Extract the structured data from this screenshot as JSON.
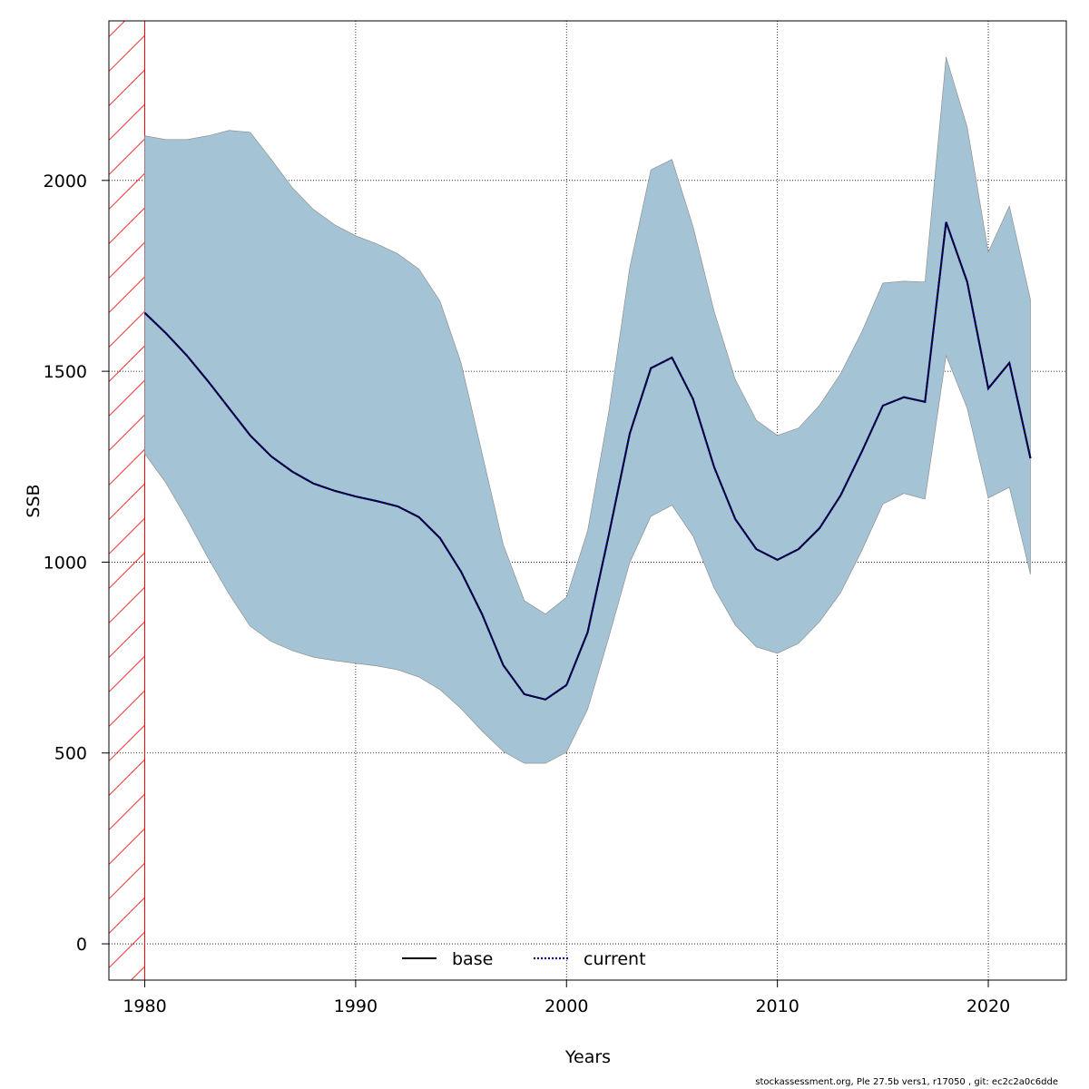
{
  "chart_data": {
    "type": "line",
    "title": "",
    "xlabel": "Years",
    "ylabel": "SSB",
    "xlim": [
      1978.3,
      2023.7
    ],
    "ylim": [
      -95,
      2418
    ],
    "xticks": [
      1980,
      1990,
      2000,
      2010,
      2020
    ],
    "yticks": [
      0,
      500,
      1000,
      1500,
      2000
    ],
    "grid": true,
    "legend_position": "bottom",
    "hatched_region": {
      "from": 1978.3,
      "to": 1980,
      "color": "#ff0000"
    },
    "x": [
      1980,
      1981,
      1982,
      1983,
      1984,
      1985,
      1986,
      1987,
      1988,
      1989,
      1990,
      1991,
      1992,
      1993,
      1994,
      1995,
      1996,
      1997,
      1998,
      1999,
      2000,
      2001,
      2002,
      2003,
      2004,
      2005,
      2006,
      2007,
      2008,
      2009,
      2010,
      2011,
      2012,
      2013,
      2014,
      2015,
      2016,
      2017,
      2018,
      2019,
      2020,
      2021,
      2022
    ],
    "series": [
      {
        "name": "base",
        "style": "solid",
        "color": "#000000",
        "values": [
          1653,
          1600,
          1541,
          1474,
          1403,
          1332,
          1277,
          1237,
          1206,
          1187,
          1172,
          1160,
          1146,
          1118,
          1063,
          975,
          863,
          730,
          654,
          640,
          678,
          816,
          1070,
          1337,
          1508,
          1536,
          1427,
          1249,
          1113,
          1034,
          1006,
          1034,
          1089,
          1175,
          1289,
          1410,
          1432,
          1420,
          1891,
          1734,
          1455,
          1522,
          1272
        ]
      },
      {
        "name": "current",
        "style": "dotted",
        "color": "#00008b",
        "values": [
          1653,
          1600,
          1541,
          1474,
          1403,
          1332,
          1277,
          1237,
          1206,
          1187,
          1172,
          1160,
          1146,
          1118,
          1063,
          975,
          863,
          730,
          654,
          640,
          678,
          816,
          1070,
          1337,
          1508,
          1536,
          1427,
          1249,
          1113,
          1034,
          1006,
          1034,
          1089,
          1175,
          1289,
          1410,
          1432,
          1420,
          1891,
          1734,
          1455,
          1522,
          1272
        ]
      }
    ],
    "confidence_band": {
      "color": "#a4c3d4",
      "upper": [
        2117,
        2107,
        2107,
        2117,
        2131,
        2126,
        2055,
        1981,
        1924,
        1884,
        1855,
        1834,
        1808,
        1768,
        1684,
        1522,
        1284,
        1046,
        899,
        864,
        908,
        1082,
        1392,
        1772,
        2028,
        2055,
        1879,
        1657,
        1479,
        1372,
        1332,
        1351,
        1411,
        1494,
        1603,
        1731,
        1736,
        1734,
        2323,
        2140,
        1812,
        1933,
        1688
      ],
      "lower": [
        1284,
        1208,
        1113,
        1011,
        916,
        832,
        792,
        768,
        751,
        742,
        735,
        728,
        718,
        699,
        666,
        616,
        557,
        504,
        473,
        473,
        502,
        614,
        802,
        999,
        1120,
        1149,
        1068,
        932,
        835,
        778,
        761,
        787,
        844,
        920,
        1030,
        1152,
        1180,
        1165,
        1541,
        1403,
        1168,
        1196,
        968
      ]
    }
  },
  "footer": "stockassessment.org, Ple  27.5b  vers1, r17050 , git: ec2c2a0c6dde"
}
